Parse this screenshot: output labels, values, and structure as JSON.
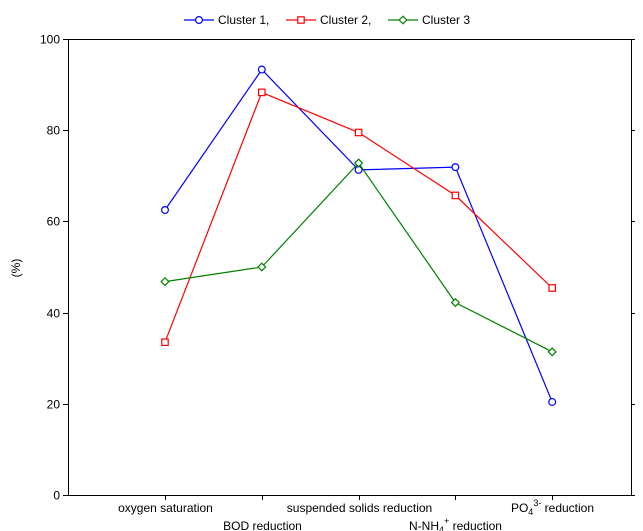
{
  "chart_data": {
    "type": "line",
    "ylabel": "(%)",
    "xlabel": "",
    "ylim": [
      0,
      100
    ],
    "yticks": [
      "0",
      "20",
      "40",
      "60",
      "80",
      "100"
    ],
    "categories": [
      "oxygen saturation",
      "BOD reduction",
      "suspended solids reduction",
      "N-NH4+ reduction",
      "PO43- reduction"
    ],
    "category_labels": [
      {
        "text": "oxygen saturation"
      },
      {
        "text": "BOD reduction"
      },
      {
        "text": "suspended solids reduction"
      },
      {
        "text": "N-NH",
        "sub": "4",
        "sup": "+",
        "tail": " reduction"
      },
      {
        "text": "PO",
        "sub": "4",
        "sup": "3-",
        "tail": " reduction"
      }
    ],
    "legend_position": "top-center",
    "grid": false,
    "series": [
      {
        "name": "Cluster 1,",
        "color": "#0000ff",
        "marker": "circle",
        "values": [
          62.5,
          93.3,
          71.3,
          71.9,
          20.4
        ]
      },
      {
        "name": "Cluster 2,",
        "color": "#ff0000",
        "marker": "square",
        "values": [
          33.5,
          88.3,
          79.5,
          65.7,
          45.4
        ]
      },
      {
        "name": "Cluster 3",
        "color": "#008000",
        "marker": "diamond",
        "values": [
          46.8,
          50.0,
          72.8,
          42.2,
          31.4
        ]
      }
    ]
  }
}
